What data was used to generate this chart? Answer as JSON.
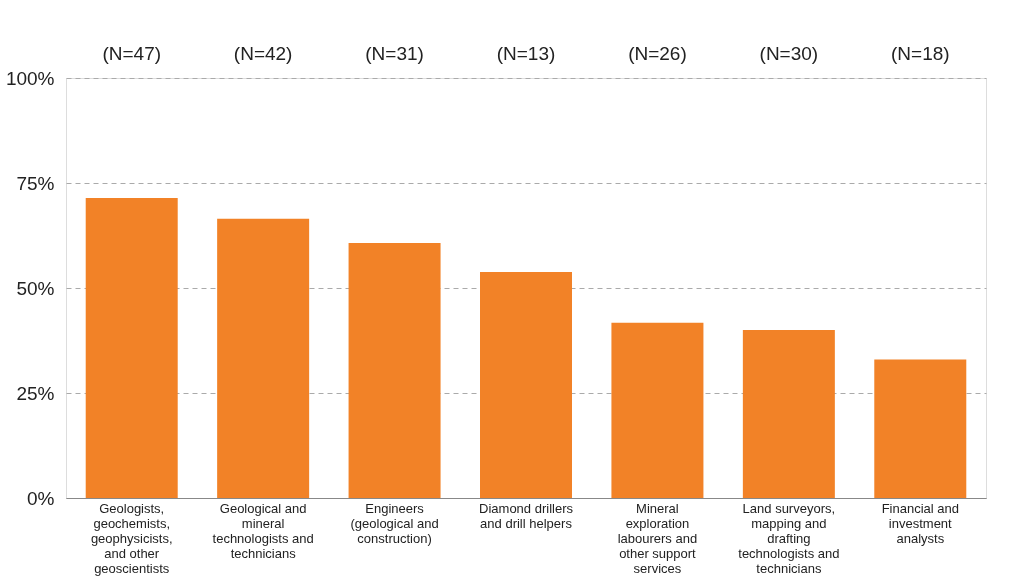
{
  "chart_data": {
    "type": "bar",
    "categories": [
      "Geologists, geochemists, geophysicists, and other geoscientists",
      "Geological and mineral technologists and technicians",
      "Engineers (geological and construction)",
      "Diamond drillers and drill helpers",
      "Mineral exploration labourers and other support services",
      "Land surveyors, mapping and drafting technologists and technicians",
      "Financial and investment analysts"
    ],
    "values": [
      71.4,
      66.5,
      60.7,
      53.8,
      41.7,
      40.0,
      33.0
    ],
    "color": "#f28227",
    "ylim": [
      0,
      100
    ],
    "yticks": [
      {
        "value": 0,
        "label": "0%"
      },
      {
        "value": 25,
        "label": "25%"
      },
      {
        "value": 50,
        "label": "50%"
      },
      {
        "value": 75,
        "label": "75%"
      },
      {
        "value": 100,
        "label": "100%"
      }
    ],
    "grid": "y",
    "annotations": [
      "(N=47)",
      "(N=42)",
      "(N=31)",
      "(N=13)",
      "(N=26)",
      "(N=30)",
      "(N=18)"
    ]
  }
}
